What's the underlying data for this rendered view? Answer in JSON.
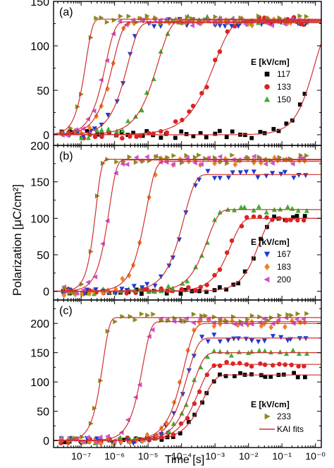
{
  "figure": {
    "ylabel": "Polarization [μC/cm²]",
    "xlabel": "Time [s]",
    "x_ticks": [
      "10⁻⁷",
      "10⁻⁶",
      "10⁻⁵",
      "10⁻⁴",
      "10⁻³",
      "10⁻²",
      "10⁻¹",
      "10⁻⁰"
    ]
  },
  "colors": {
    "e117": "#000000",
    "e133": "#e02020",
    "e150": "#3cb030",
    "e167": "#1e3ad0",
    "e183": "#f08020",
    "e200": "#d050d0",
    "e233": "#8a8a20",
    "fit": "#d03030"
  },
  "chart_data": [
    {
      "type": "scatter",
      "panel_label": "(a)",
      "x_scale": "log",
      "xlim": [
        1.5e-08,
        1.5
      ],
      "ylim": [
        -12,
        150
      ],
      "y_ticks": [
        0,
        50,
        100,
        150
      ],
      "legend_title": "E [kV/cm]",
      "legend_position": "center-right",
      "series": [
        {
          "name": "117",
          "color_key": "e117",
          "marker": "square",
          "show_in_legend": true,
          "pmax": 120,
          "t0": 0.9,
          "n": 1.3
        },
        {
          "name": "133",
          "color_key": "e133",
          "marker": "circle",
          "show_in_legend": true,
          "pmax": 128,
          "t0": 0.001,
          "n": 0.9
        },
        {
          "name": "150",
          "color_key": "e150",
          "marker": "triangle-up",
          "show_in_legend": true,
          "pmax": 129,
          "t0": 2e-05,
          "n": 1.15
        },
        {
          "name": "167",
          "color_key": "e167",
          "marker": "triangle-down",
          "show_in_legend": false,
          "pmax": 126,
          "t0": 2.5e-06,
          "n": 1.35
        },
        {
          "name": "183",
          "color_key": "e183",
          "marker": "diamond",
          "show_in_legend": false,
          "pmax": 127,
          "t0": 9e-07,
          "n": 1.45
        },
        {
          "name": "200",
          "color_key": "e200",
          "marker": "triangle-left",
          "show_in_legend": false,
          "pmax": 127,
          "t0": 5.5e-07,
          "n": 1.6
        },
        {
          "name": "233",
          "color_key": "e233",
          "marker": "triangle-right",
          "show_in_legend": false,
          "pmax": 130,
          "t0": 1.4e-07,
          "n": 2.2
        }
      ]
    },
    {
      "type": "scatter",
      "panel_label": "(b)",
      "x_scale": "log",
      "xlim": [
        1.5e-08,
        1.5
      ],
      "ylim": [
        -12,
        200
      ],
      "y_ticks": [
        0,
        50,
        100,
        150,
        200
      ],
      "legend_title": "E [kV/cm]",
      "legend_position": "bottom-right",
      "series": [
        {
          "name": "117",
          "color_key": "e117",
          "marker": "square",
          "show_in_legend": false,
          "pmax": 100,
          "t0": 0.02,
          "n": 1.4
        },
        {
          "name": "133",
          "color_key": "e133",
          "marker": "circle",
          "show_in_legend": false,
          "pmax": 100,
          "t0": 0.003,
          "n": 1.3
        },
        {
          "name": "150",
          "color_key": "e150",
          "marker": "triangle-up",
          "show_in_legend": false,
          "pmax": 112,
          "t0": 0.0006,
          "n": 1.3
        },
        {
          "name": "167",
          "color_key": "e167",
          "marker": "triangle-down",
          "show_in_legend": true,
          "pmax": 160,
          "t0": 0.00012,
          "n": 1.3
        },
        {
          "name": "183",
          "color_key": "e183",
          "marker": "diamond",
          "show_in_legend": true,
          "pmax": 178,
          "t0": 9e-06,
          "n": 1.6
        },
        {
          "name": "200",
          "color_key": "e200",
          "marker": "triangle-left",
          "show_in_legend": true,
          "pmax": 180,
          "t0": 7e-07,
          "n": 2.0
        },
        {
          "name": "233",
          "color_key": "e233",
          "marker": "triangle-right",
          "show_in_legend": false,
          "pmax": 181,
          "t0": 2.8e-07,
          "n": 2.6
        }
      ]
    },
    {
      "type": "scatter",
      "panel_label": "(c)",
      "x_scale": "log",
      "xlim": [
        1.5e-08,
        1.5
      ],
      "ylim": [
        -12,
        240
      ],
      "y_ticks": [
        0,
        50,
        100,
        150,
        200
      ],
      "legend_title": "E [kV/cm]",
      "legend_position": "bottom-right",
      "fit_label": "KAI fits",
      "series": [
        {
          "name": "117",
          "color_key": "e117",
          "marker": "square",
          "show_in_legend": false,
          "pmax": 112,
          "t0": 0.00045,
          "n": 1.2
        },
        {
          "name": "133",
          "color_key": "e133",
          "marker": "circle",
          "show_in_legend": false,
          "pmax": 130,
          "t0": 0.00032,
          "n": 1.25
        },
        {
          "name": "150",
          "color_key": "e150",
          "marker": "triangle-up",
          "show_in_legend": false,
          "pmax": 150,
          "t0": 0.00022,
          "n": 1.3
        },
        {
          "name": "167",
          "color_key": "e167",
          "marker": "triangle-down",
          "show_in_legend": false,
          "pmax": 175,
          "t0": 0.00015,
          "n": 1.35
        },
        {
          "name": "183",
          "color_key": "e183",
          "marker": "diamond",
          "show_in_legend": false,
          "pmax": 200,
          "t0": 0.00012,
          "n": 1.4
        },
        {
          "name": "200",
          "color_key": "e200",
          "marker": "triangle-left",
          "show_in_legend": false,
          "pmax": 203,
          "t0": 7e-06,
          "n": 1.8
        },
        {
          "name": "233",
          "color_key": "e233",
          "marker": "triangle-right",
          "show_in_legend": true,
          "pmax": 210,
          "t0": 4.5e-07,
          "n": 2.2
        }
      ]
    }
  ]
}
